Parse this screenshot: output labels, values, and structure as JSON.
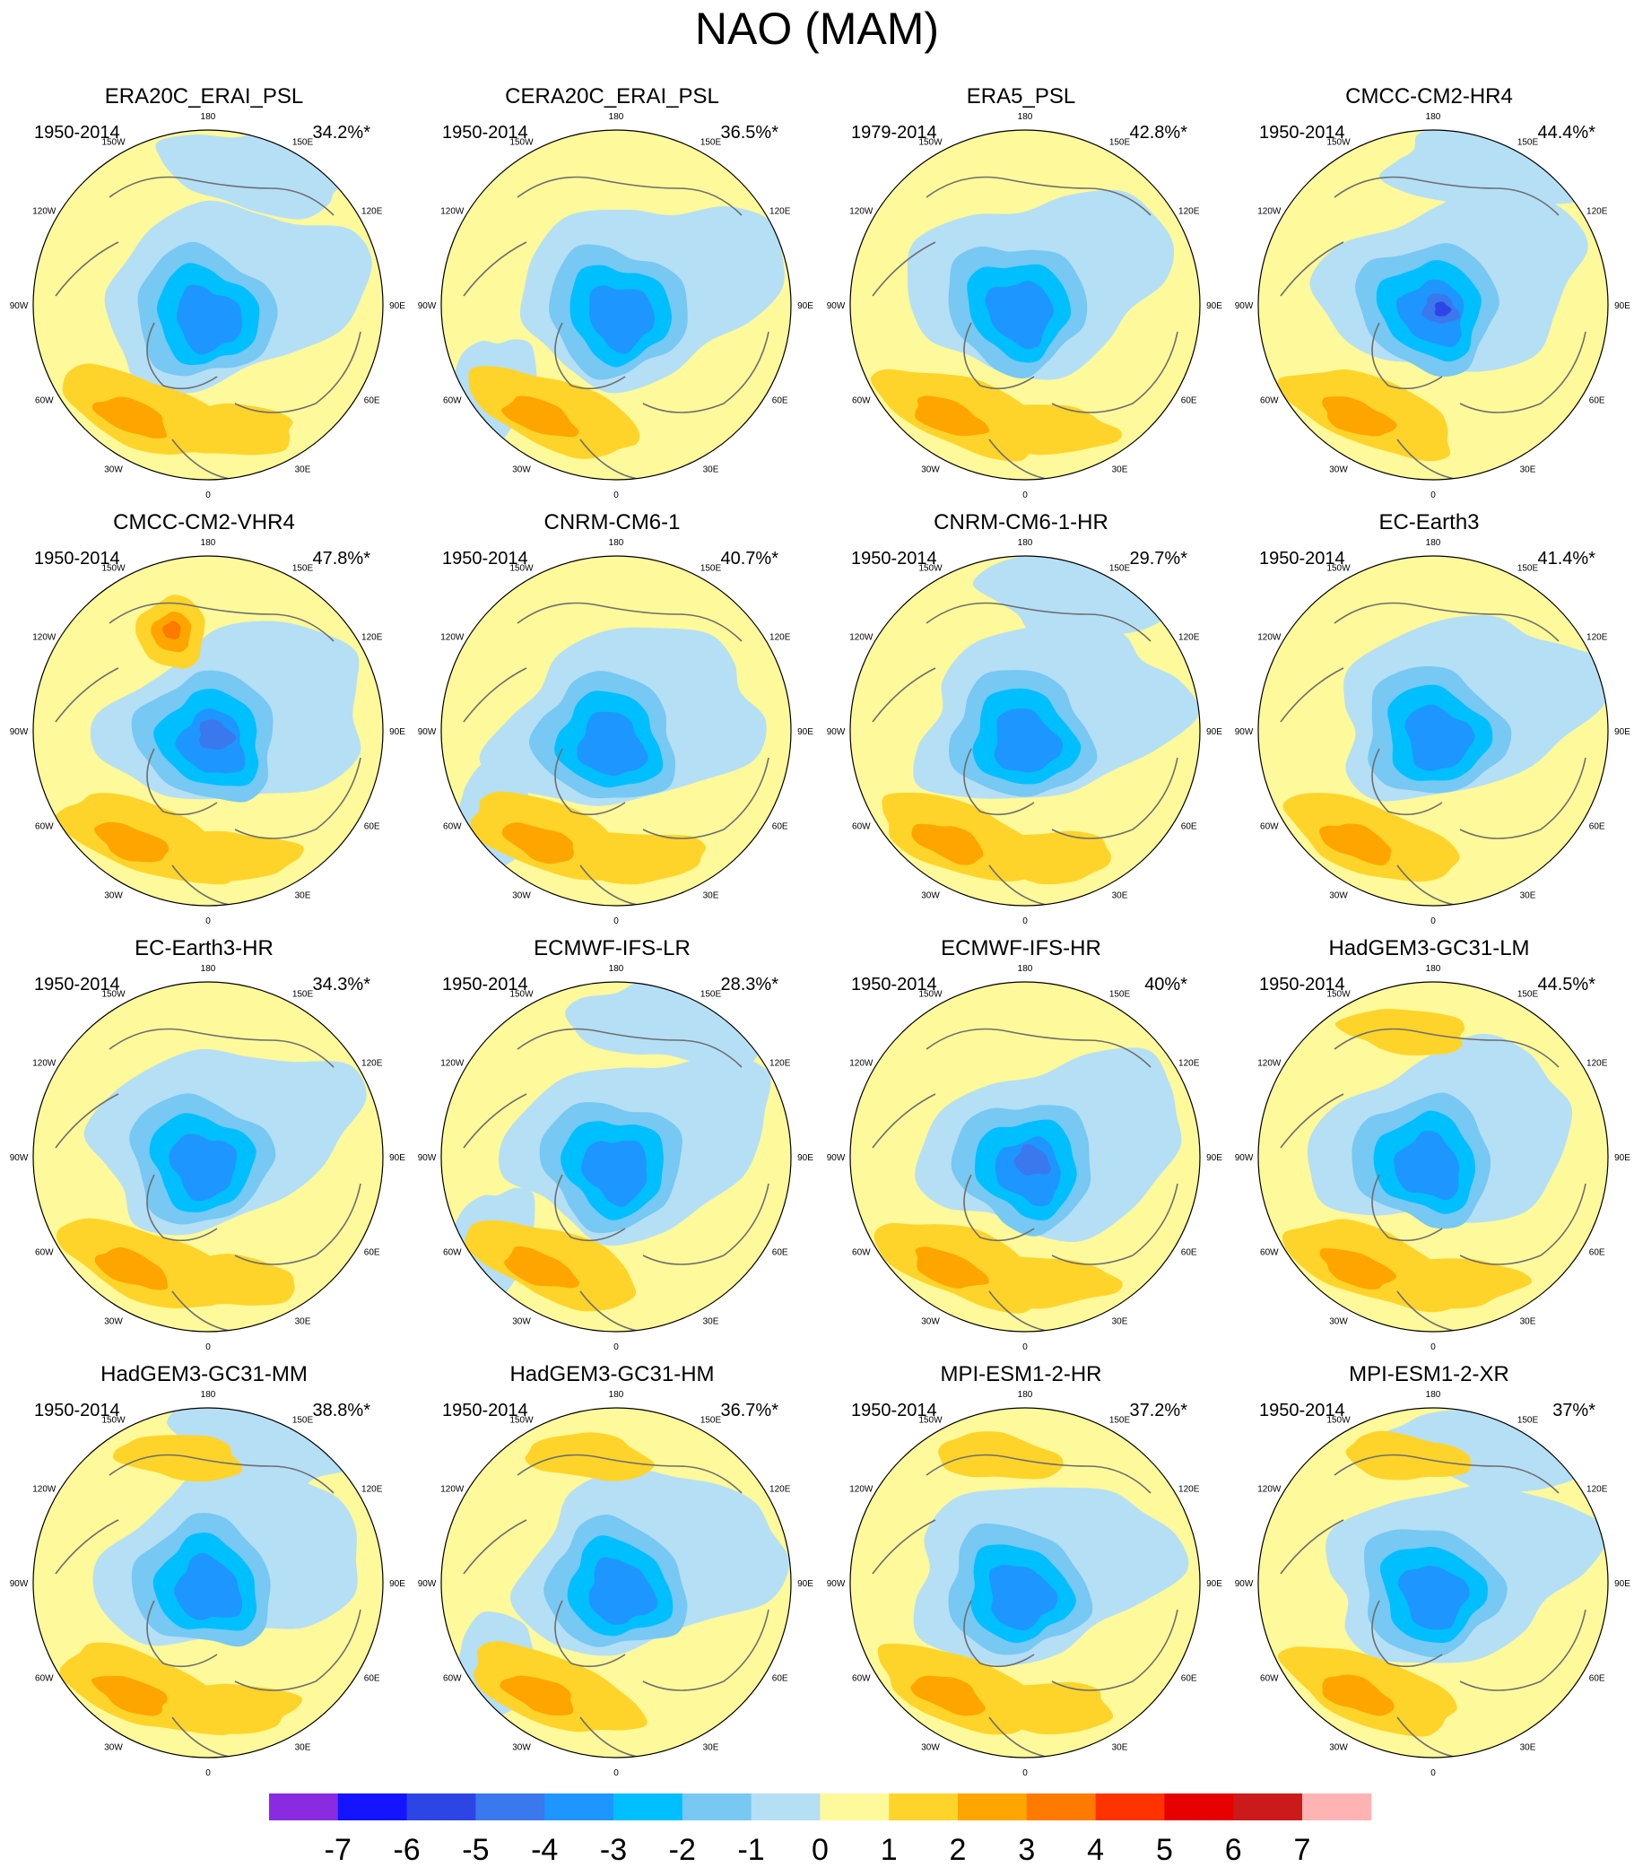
{
  "title": "NAO (MAM)",
  "panels": [
    {
      "name": "ERA20C_ERAI_PSL",
      "period": "1950-2014",
      "percent": "34.2%*"
    },
    {
      "name": "CERA20C_ERAI_PSL",
      "period": "1950-2014",
      "percent": "36.5%*"
    },
    {
      "name": "ERA5_PSL",
      "period": "1979-2014",
      "percent": "42.8%*"
    },
    {
      "name": "CMCC-CM2-HR4",
      "period": "1950-2014",
      "percent": "44.4%*"
    },
    {
      "name": "CMCC-CM2-VHR4",
      "period": "1950-2014",
      "percent": "47.8%*"
    },
    {
      "name": "CNRM-CM6-1",
      "period": "1950-2014",
      "percent": "40.7%*"
    },
    {
      "name": "CNRM-CM6-1-HR",
      "period": "1950-2014",
      "percent": "29.7%*"
    },
    {
      "name": "EC-Earth3",
      "period": "1950-2014",
      "percent": "41.4%*"
    },
    {
      "name": "EC-Earth3-HR",
      "period": "1950-2014",
      "percent": "34.3%*"
    },
    {
      "name": "ECMWF-IFS-LR",
      "period": "1950-2014",
      "percent": "28.3%*"
    },
    {
      "name": "ECMWF-IFS-HR",
      "period": "1950-2014",
      "percent": "40%*"
    },
    {
      "name": "HadGEM3-GC31-LM",
      "period": "1950-2014",
      "percent": "44.5%*"
    },
    {
      "name": "HadGEM3-GC31-MM",
      "period": "1950-2014",
      "percent": "38.8%*"
    },
    {
      "name": "HadGEM3-GC31-HM",
      "period": "1950-2014",
      "percent": "36.7%*"
    },
    {
      "name": "MPI-ESM1-2-HR",
      "period": "1950-2014",
      "percent": "37.2%*"
    },
    {
      "name": "MPI-ESM1-2-XR",
      "period": "1950-2014",
      "percent": "37%*"
    }
  ],
  "longitude_labels": [
    "180",
    "150E",
    "120E",
    "90E",
    "60E",
    "30E",
    "0",
    "30W",
    "60W",
    "90W",
    "120W",
    "150W"
  ],
  "colorbar": {
    "labels": [
      "-7",
      "-6",
      "-5",
      "-4",
      "-3",
      "-2",
      "-1",
      "0",
      "1",
      "2",
      "3",
      "4",
      "5",
      "6",
      "7"
    ],
    "colors": [
      "#8a2be2",
      "#1414ff",
      "#2e45e6",
      "#3a78ee",
      "#1e96ff",
      "#00bfff",
      "#77c8f3",
      "#b5dff5",
      "#fef99a",
      "#ffd42a",
      "#ffa500",
      "#ff7a00",
      "#ff3300",
      "#e60000",
      "#cc1a1a",
      "#ffb3b3"
    ]
  }
}
